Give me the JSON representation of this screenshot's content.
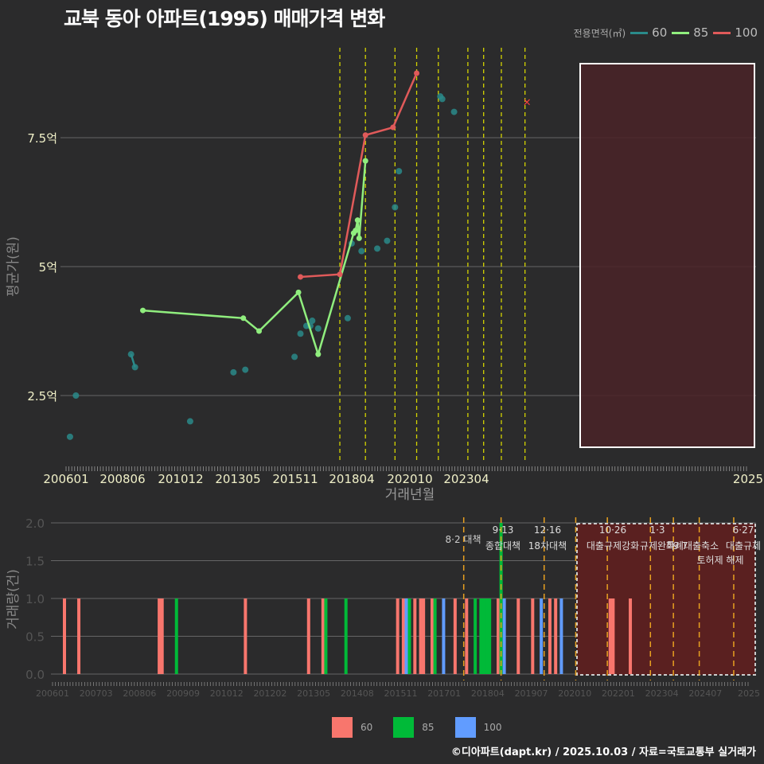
{
  "title": "교북 동아 아파트(1995) 매매가격 변화",
  "legend_top": {
    "label": "전용면적(㎡)",
    "items": [
      {
        "name": "60",
        "color": "#2a8a8a"
      },
      {
        "name": "85",
        "color": "#90ee7e"
      },
      {
        "name": "100",
        "color": "#e05a5a"
      }
    ]
  },
  "legend_bottom": {
    "items": [
      {
        "name": "60",
        "color": "#f8766d"
      },
      {
        "name": "85",
        "color": "#00ba38"
      },
      {
        "name": "100",
        "color": "#619cff"
      }
    ]
  },
  "credit": "©디아파트(dapt.kr) / 2025.10.03 / 자료=국토교통부 실거래가",
  "chart_data": [
    {
      "type": "line",
      "title": "교북 동아 아파트(1995) 매매가격 변화",
      "xlabel": "거래년월",
      "ylabel": "평균가(원)",
      "x_ticks": [
        "200601",
        "200806",
        "201012",
        "201305",
        "201511",
        "201804",
        "202010",
        "202304",
        "2025"
      ],
      "y_ticks": [
        "2.5억",
        "5억",
        "7.5억"
      ],
      "ylim_eok": [
        1.2,
        8.9
      ],
      "legend_title": "전용면적(㎡)",
      "series": [
        {
          "name": "60",
          "points": [
            [
              "200603",
              1.7
            ],
            [
              "200606",
              2.5
            ],
            [
              "200810",
              3.3
            ],
            [
              "200812",
              3.05
            ],
            [
              "201104",
              2.0
            ],
            [
              "201302",
              2.95
            ],
            [
              "201308",
              3.0
            ],
            [
              "201509",
              3.25
            ],
            [
              "201512",
              3.7
            ],
            [
              "201603",
              3.85
            ],
            [
              "201605",
              3.85
            ],
            [
              "201606",
              3.95
            ],
            [
              "201609",
              3.8
            ],
            [
              "201712",
              4.0
            ],
            [
              "201802",
              5.45
            ],
            [
              "201807",
              5.3
            ],
            [
              "201903",
              5.35
            ],
            [
              "201908",
              5.5
            ],
            [
              "201912",
              6.15
            ],
            [
              "202002",
              6.85
            ],
            [
              "202111",
              8.3
            ],
            [
              "202112",
              8.25
            ],
            [
              "202206",
              8.0
            ]
          ]
        },
        {
          "name": "85",
          "points": [
            [
              "200904",
              4.15
            ],
            [
              "201307",
              4.0
            ],
            [
              "201403",
              3.75
            ],
            [
              "201511",
              4.5
            ],
            [
              "201609",
              3.3
            ],
            [
              "201803",
              5.65
            ],
            [
              "201804",
              5.7
            ],
            [
              "201805",
              5.9
            ],
            [
              "201805b",
              5.55
            ],
            [
              "201809",
              7.05
            ]
          ]
        },
        {
          "name": "100",
          "points": [
            [
              "201512",
              4.8
            ],
            [
              "201708",
              4.85
            ],
            [
              "201809",
              7.55
            ],
            [
              "201911",
              7.7
            ],
            [
              "202011",
              8.75
            ],
            [
              "202507",
              8.2
            ]
          ]
        }
      ],
      "policy_lines": [
        "201708",
        "201809",
        "201912",
        "202011",
        "202110",
        "202301",
        "202309",
        "202406",
        "202506"
      ],
      "highlight_box": {
        "from": "202011",
        "to": "202510"
      }
    },
    {
      "type": "bar",
      "xlabel": "",
      "ylabel": "거래량(건)",
      "x_ticks": [
        "200601",
        "200703",
        "200806",
        "200909",
        "201012",
        "201202",
        "201305",
        "201408",
        "201511",
        "201701",
        "201804",
        "201907",
        "202010",
        "202201",
        "202304",
        "202407",
        "2025"
      ],
      "y_ticks": [
        "0.0",
        "0.5",
        "1.0",
        "1.5",
        "2.0"
      ],
      "ylim": [
        0,
        2.0
      ],
      "series_colors": {
        "60": "#f8766d",
        "85": "#00ba38",
        "100": "#619cff"
      },
      "bars": [
        {
          "m": "200601",
          "s": "60",
          "v": 1
        },
        {
          "m": "200606",
          "s": "60",
          "v": 1
        },
        {
          "m": "200810",
          "s": "60",
          "v": 1
        },
        {
          "m": "200811",
          "s": "60",
          "v": 1
        },
        {
          "m": "200904",
          "s": "85",
          "v": 1
        },
        {
          "m": "201104",
          "s": "60",
          "v": 1
        },
        {
          "m": "201302",
          "s": "60",
          "v": 1
        },
        {
          "m": "201307",
          "s": "60",
          "v": 1
        },
        {
          "m": "201308",
          "s": "85",
          "v": 1
        },
        {
          "m": "201403",
          "s": "85",
          "v": 1
        },
        {
          "m": "201509",
          "s": "60",
          "v": 1
        },
        {
          "m": "201511",
          "s": "60",
          "v": 1
        },
        {
          "m": "201512",
          "s": "100",
          "v": 1
        },
        {
          "m": "201512b",
          "s": "85",
          "v": 1
        },
        {
          "m": "201603",
          "s": "60",
          "v": 1
        },
        {
          "m": "201605",
          "s": "60",
          "v": 1
        },
        {
          "m": "201606",
          "s": "60",
          "v": 1
        },
        {
          "m": "201609",
          "s": "60",
          "v": 1
        },
        {
          "m": "201610",
          "s": "85",
          "v": 1
        },
        {
          "m": "201701",
          "s": "100",
          "v": 1
        },
        {
          "m": "201705",
          "s": "60",
          "v": 1
        },
        {
          "m": "201709",
          "s": "60",
          "v": 1
        },
        {
          "m": "201712",
          "s": "85",
          "v": 1
        },
        {
          "m": "201802",
          "s": "85",
          "v": 1
        },
        {
          "m": "201803",
          "s": "85",
          "v": 1
        },
        {
          "m": "201804",
          "s": "85",
          "v": 1
        },
        {
          "m": "201805",
          "s": "85",
          "v": 1
        },
        {
          "m": "201808",
          "s": "60",
          "v": 1
        },
        {
          "m": "201809",
          "s": "85",
          "v": 2
        },
        {
          "m": "201809b",
          "s": "100",
          "v": 1
        },
        {
          "m": "201903",
          "s": "60",
          "v": 1
        },
        {
          "m": "201908",
          "s": "60",
          "v": 1
        },
        {
          "m": "201911",
          "s": "100",
          "v": 1
        },
        {
          "m": "202002",
          "s": "60",
          "v": 1
        },
        {
          "m": "202004",
          "s": "60",
          "v": 1
        },
        {
          "m": "202006",
          "s": "100",
          "v": 1
        },
        {
          "m": "202111",
          "s": "60",
          "v": 1
        },
        {
          "m": "202112",
          "s": "60",
          "v": 1
        },
        {
          "m": "202206",
          "s": "60",
          "v": 1
        }
      ],
      "annotations": [
        {
          "date": "8·2",
          "text": "대책"
        },
        {
          "date": "9·13",
          "text": "종합대책"
        },
        {
          "date": "12·16",
          "text": "18차대책"
        },
        {
          "date": "10·26",
          "text": "대출규제강화"
        },
        {
          "date": "1·3",
          "text": "규제완화"
        },
        {
          "date": "9·7",
          "text": "특례대출축소"
        },
        {
          "date": "",
          "text": "토허제 해제"
        },
        {
          "date": "6·27",
          "text": "대출규제"
        }
      ]
    }
  ],
  "axis": {
    "main_xlabel": "거래년월",
    "main_ylabel": "평균가(원)",
    "bar_ylabel": "거래량(건)"
  }
}
